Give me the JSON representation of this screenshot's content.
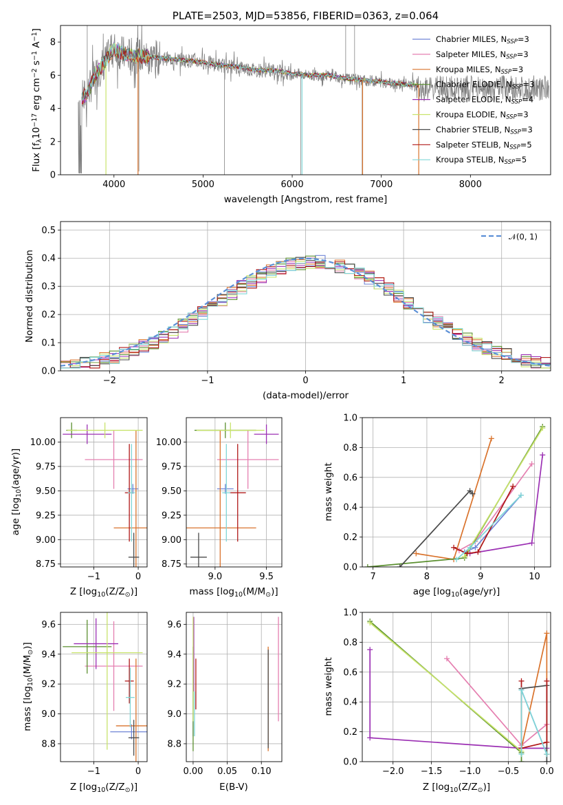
{
  "colors": {
    "Chabrier MILES": "#6f84d6",
    "Salpeter MILES": "#e57fb0",
    "Kroupa MILES": "#d9722b",
    "Chabrier ELODIE": "#5a8f2e",
    "Salpeter ELODIE": "#9b2fb3",
    "Kroupa ELODIE": "#c8e36b",
    "Chabrier STELIB": "#4a4a4a",
    "Salpeter STELIB": "#b01818",
    "Kroupa STELIB": "#7fd6d6"
  },
  "chart_data": [
    {
      "type": "line",
      "title": "PLATE=2503, MJD=53856, FIBERID=0363, z=0.064",
      "xlabel": "wavelength [Angstrom, rest frame]",
      "ylabel_parts": [
        "Flux [",
        "f",
        "λ",
        "10",
        "−17",
        " erg cm",
        "−2",
        " s",
        "−1",
        " A",
        "−1",
        "]"
      ],
      "xlim": [
        3400,
        8900
      ],
      "ylim": [
        0,
        9
      ],
      "xticks": [
        4000,
        5000,
        6000,
        7000,
        8000
      ],
      "yticks": [
        0,
        2,
        4,
        6,
        8
      ],
      "legend_position": "right",
      "legend": [
        {
          "name": "Chabrier MILES",
          "n": "3"
        },
        {
          "name": "Salpeter MILES",
          "n": "3"
        },
        {
          "name": "Kroupa MILES",
          "n": "3"
        },
        {
          "name": "Chabrier ELODIE",
          "n": "3"
        },
        {
          "name": "Salpeter ELODIE",
          "n": "4"
        },
        {
          "name": "Kroupa ELODIE",
          "n": "3"
        },
        {
          "name": "Chabrier STELIB",
          "n": "3"
        },
        {
          "name": "Salpeter STELIB",
          "n": "5"
        },
        {
          "name": "Kroupa STELIB",
          "n": "5"
        }
      ],
      "legend_suffix": ", N",
      "legend_sub": "SSP",
      "continuum": {
        "wavelength": [
          3600,
          3700,
          3800,
          3900,
          4000,
          4100,
          4200,
          4400,
          4600,
          4800,
          5000,
          5200,
          5400,
          5600,
          5800,
          6000,
          6200,
          6400,
          6600,
          6800,
          7000,
          7200,
          7400
        ],
        "flux": [
          4.4,
          4.9,
          6.1,
          6.8,
          7.6,
          7.3,
          7.2,
          7.1,
          7.0,
          6.9,
          6.8,
          6.6,
          6.5,
          6.3,
          6.3,
          6.1,
          6.0,
          6.0,
          5.8,
          5.7,
          5.6,
          5.5,
          5.4
        ]
      }
    },
    {
      "type": "histogram",
      "xlabel": "(data-model)/error",
      "ylabel": "Normed distribution",
      "xlim": [
        -2.5,
        2.5
      ],
      "ylim": [
        0,
        0.53
      ],
      "xticks": [
        -2,
        -1,
        0,
        1,
        2
      ],
      "yticks": [
        0.0,
        0.1,
        0.2,
        0.3,
        0.4,
        0.5
      ],
      "grid": true,
      "legend_position": "top-right",
      "reference_curve": {
        "name": "𝒩(0, 1)",
        "style": "dashed",
        "color": "#5b8fd6"
      },
      "bin_edges_start": -2.5,
      "bin_width": 0.1
    },
    {
      "type": "errorbar",
      "xlabel_parts": [
        "Z [log",
        "10",
        "(Z/Z",
        "⊙",
        ")]"
      ],
      "ylabel_parts": [
        "age  [log",
        "10",
        "(age/yr)]"
      ],
      "xlim": [
        -1.75,
        0.2
      ],
      "ylim": [
        8.72,
        10.25
      ],
      "xticks": [
        -1,
        0
      ],
      "yticks": [
        8.75,
        9.0,
        9.25,
        9.5,
        9.75,
        10.0
      ],
      "grid": true,
      "points": [
        {
          "model": "Chabrier MILES",
          "x": -0.12,
          "y": 9.52,
          "xerr": 0.12,
          "yerr": 0.05
        },
        {
          "model": "Salpeter MILES",
          "x": -0.55,
          "y": 9.82,
          "xerr": 0.65,
          "yerr": 0.3
        },
        {
          "model": "Kroupa MILES",
          "x": -0.05,
          "y": 9.12,
          "xerr": 0.5,
          "yerr": 1.0
        },
        {
          "model": "Chabrier ELODIE",
          "x": -1.5,
          "y": 10.12,
          "xerr": 0.12,
          "yerr": 0.08
        },
        {
          "model": "Salpeter ELODIE",
          "x": -1.15,
          "y": 10.08,
          "xerr": 0.55,
          "yerr": 0.1
        },
        {
          "model": "Kroupa ELODIE",
          "x": -0.75,
          "y": 10.12,
          "xerr": 0.85,
          "yerr": 0.08
        },
        {
          "model": "Chabrier STELIB",
          "x": -0.1,
          "y": 8.82,
          "xerr": 0.12,
          "yerr": 0.25
        },
        {
          "model": "Salpeter STELIB",
          "x": -0.2,
          "y": 9.48,
          "xerr": 0.1,
          "yerr": 0.5
        },
        {
          "model": "Kroupa STELIB",
          "x": -0.15,
          "y": 9.48,
          "xerr": 0.08,
          "yerr": 0.5
        }
      ]
    },
    {
      "type": "errorbar",
      "xlabel_parts": [
        "mass [log",
        "10",
        "(M/M",
        "⊙",
        ")]"
      ],
      "ylabel_parts": [
        "age  [log",
        "10",
        "(age/yr)]"
      ],
      "xlim": [
        8.72,
        9.65
      ],
      "ylim": [
        8.72,
        10.25
      ],
      "xticks": [
        9.0,
        9.5
      ],
      "yticks": [
        8.75,
        9.0,
        9.25,
        9.5,
        9.75,
        10.0
      ],
      "grid": true,
      "points": [
        {
          "model": "Chabrier MILES",
          "x": 9.1,
          "y": 9.52,
          "xerr": 0.08,
          "yerr": 0.05
        },
        {
          "model": "Salpeter MILES",
          "x": 9.32,
          "y": 9.82,
          "xerr": 0.3,
          "yerr": 0.3
        },
        {
          "model": "Kroupa MILES",
          "x": 9.05,
          "y": 9.12,
          "xerr": 0.35,
          "yerr": 1.0
        },
        {
          "model": "Chabrier ELODIE",
          "x": 9.1,
          "y": 10.12,
          "xerr": 0.3,
          "yerr": 0.08
        },
        {
          "model": "Salpeter ELODIE",
          "x": 9.5,
          "y": 10.08,
          "xerr": 0.12,
          "yerr": 0.1
        },
        {
          "model": "Kroupa ELODIE",
          "x": 9.15,
          "y": 10.12,
          "xerr": 0.33,
          "yerr": 0.08
        },
        {
          "model": "Chabrier STELIB",
          "x": 8.84,
          "y": 8.82,
          "xerr": 0.08,
          "yerr": 0.25
        },
        {
          "model": "Salpeter STELIB",
          "x": 9.22,
          "y": 9.48,
          "xerr": 0.08,
          "yerr": 0.5
        },
        {
          "model": "Kroupa STELIB",
          "x": 9.11,
          "y": 9.48,
          "xerr": 0.04,
          "yerr": 0.5
        }
      ]
    },
    {
      "type": "line",
      "xlabel_parts": [
        "age  [log",
        "10",
        "(age/yr)]"
      ],
      "ylabel": "mass weight",
      "xlim": [
        6.8,
        10.3
      ],
      "ylim": [
        0,
        1
      ],
      "xticks": [
        7,
        8,
        9,
        10
      ],
      "yticks": [
        0.0,
        0.2,
        0.4,
        0.6,
        0.8,
        1.0
      ],
      "grid": true,
      "series": [
        {
          "model": "Chabrier MILES",
          "x": [
            8.7,
            8.9,
            9.75
          ],
          "y": [
            0.1,
            0.13,
            0.48
          ]
        },
        {
          "model": "Salpeter MILES",
          "x": [
            8.6,
            8.9,
            9.95
          ],
          "y": [
            0.11,
            0.17,
            0.69
          ]
        },
        {
          "model": "Kroupa MILES",
          "x": [
            7.8,
            8.5,
            9.2
          ],
          "y": [
            0.09,
            0.05,
            0.86
          ]
        },
        {
          "model": "Chabrier ELODIE",
          "x": [
            6.9,
            8.7,
            10.15
          ],
          "y": [
            0.0,
            0.06,
            0.94
          ]
        },
        {
          "model": "Salpeter ELODIE",
          "x": [
            8.8,
            9.95,
            10.15
          ],
          "y": [
            0.09,
            0.16,
            0.75
          ]
        },
        {
          "model": "Kroupa ELODIE",
          "x": [
            8.7,
            10.15
          ],
          "y": [
            0.07,
            0.93
          ]
        },
        {
          "model": "Chabrier STELIB",
          "x": [
            7.5,
            8.8,
            8.85
          ],
          "y": [
            0.0,
            0.51,
            0.49
          ]
        },
        {
          "model": "Salpeter STELIB",
          "x": [
            8.5,
            8.75,
            8.95,
            9.6
          ],
          "y": [
            0.13,
            0.09,
            0.1,
            0.54
          ]
        },
        {
          "model": "Kroupa STELIB",
          "x": [
            8.55,
            8.8,
            9.75
          ],
          "y": [
            0.05,
            0.13,
            0.48
          ]
        }
      ]
    },
    {
      "type": "errorbar",
      "xlabel_parts": [
        "Z [log",
        "10",
        "(Z/Z",
        "⊙",
        ")]"
      ],
      "ylabel_parts": [
        "mass [log",
        "10",
        "(M/M",
        "⊙",
        ")]"
      ],
      "xlim": [
        -1.75,
        0.2
      ],
      "ylim": [
        8.68,
        9.68
      ],
      "xticks": [
        -1,
        0
      ],
      "yticks": [
        8.8,
        9.0,
        9.2,
        9.4,
        9.6
      ],
      "grid": true,
      "points": [
        {
          "model": "Chabrier MILES",
          "x": -0.15,
          "y": 8.88,
          "xerr": 0.48,
          "yerr": 0.05
        },
        {
          "model": "Salpeter MILES",
          "x": -0.55,
          "y": 9.32,
          "xerr": 0.65,
          "yerr": 0.3
        },
        {
          "model": "Kroupa MILES",
          "x": -0.05,
          "y": 8.92,
          "xerr": 0.45,
          "yerr": 0.45
        },
        {
          "model": "Chabrier ELODIE",
          "x": -1.15,
          "y": 9.45,
          "xerr": 0.55,
          "yerr": 0.18
        },
        {
          "model": "Salpeter ELODIE",
          "x": -0.95,
          "y": 9.47,
          "xerr": 0.5,
          "yerr": 0.17
        },
        {
          "model": "Kroupa ELODIE",
          "x": -0.7,
          "y": 9.41,
          "xerr": 0.8,
          "yerr": 0.65
        },
        {
          "model": "Chabrier STELIB",
          "x": -0.1,
          "y": 8.84,
          "xerr": 0.12,
          "yerr": 0.12
        },
        {
          "model": "Salpeter STELIB",
          "x": -0.2,
          "y": 9.22,
          "xerr": 0.1,
          "yerr": 0.15
        },
        {
          "model": "Kroupa STELIB",
          "x": -0.18,
          "y": 9.11,
          "xerr": 0.1,
          "yerr": 0.2
        }
      ]
    },
    {
      "type": "errorbar",
      "xlabel": "E(B-V)",
      "ylabel": "",
      "xlim": [
        -0.01,
        0.13
      ],
      "ylim": [
        8.68,
        9.68
      ],
      "xticks": [
        0.0,
        0.05,
        0.1
      ],
      "yticks": [
        8.8,
        9.0,
        9.2,
        9.4,
        9.6
      ],
      "grid": true,
      "points": [
        {
          "model": "Chabrier MILES",
          "x": 0.0,
          "y": 9.0,
          "xerr": 0.0,
          "yerr": 0.15
        },
        {
          "model": "Salpeter MILES",
          "x": 0.125,
          "y": 9.3,
          "xerr": 0.0,
          "yerr": 0.35
        },
        {
          "model": "Kroupa MILES",
          "x": 0.11,
          "y": 9.1,
          "xerr": 0.0,
          "yerr": 0.35
        },
        {
          "model": "Chabrier ELODIE",
          "x": 0.0,
          "y": 9.1,
          "xerr": 0.0,
          "yerr": 0.35
        },
        {
          "model": "Salpeter ELODIE",
          "x": 0.001,
          "y": 9.4,
          "xerr": 0.0,
          "yerr": 0.25
        },
        {
          "model": "Kroupa ELODIE",
          "x": 0.0,
          "y": 9.3,
          "xerr": 0.0,
          "yerr": 0.35
        },
        {
          "model": "Chabrier STELIB",
          "x": 0.11,
          "y": 9.1,
          "xerr": 0.0,
          "yerr": 0.33
        },
        {
          "model": "Salpeter STELIB",
          "x": 0.004,
          "y": 9.2,
          "xerr": 0.0,
          "yerr": 0.17
        },
        {
          "model": "Kroupa STELIB",
          "x": 0.002,
          "y": 9.0,
          "xerr": 0.0,
          "yerr": 0.15
        }
      ]
    },
    {
      "type": "line",
      "xlabel_parts": [
        "Z [log",
        "10",
        "(Z/Z",
        "⊙",
        ")]"
      ],
      "ylabel": "mass weight",
      "xlim": [
        -2.4,
        0.05
      ],
      "ylim": [
        0,
        1
      ],
      "xticks": [
        -2.0,
        -1.5,
        -1.0,
        -0.5,
        0.0
      ],
      "yticks": [
        0.0,
        0.2,
        0.4,
        0.6,
        0.8,
        1.0
      ],
      "grid": true,
      "series": [
        {
          "model": "Chabrier MILES",
          "x": [
            -0.33,
            0.0
          ],
          "y": [
            0.48,
            0.05
          ]
        },
        {
          "model": "Salpeter MILES",
          "x": [
            -1.3,
            -0.33,
            0.0
          ],
          "y": [
            0.69,
            0.11,
            0.25
          ]
        },
        {
          "model": "Kroupa MILES",
          "x": [
            -0.33,
            0.0,
            0.0
          ],
          "y": [
            0.09,
            0.86,
            0.05
          ]
        },
        {
          "model": "Chabrier ELODIE",
          "x": [
            -2.3,
            -0.33,
            -0.33
          ],
          "y": [
            0.94,
            0.06,
            0.0
          ]
        },
        {
          "model": "Salpeter ELODIE",
          "x": [
            -2.3,
            -2.3,
            -0.33,
            0.0
          ],
          "y": [
            0.75,
            0.16,
            0.09,
            0.09
          ]
        },
        {
          "model": "Kroupa ELODIE",
          "x": [
            -2.3,
            -0.33
          ],
          "y": [
            0.93,
            0.07
          ]
        },
        {
          "model": "Chabrier STELIB",
          "x": [
            -0.33,
            0.0,
            0.0
          ],
          "y": [
            0.49,
            0.51,
            0.0
          ]
        },
        {
          "model": "Salpeter STELIB",
          "x": [
            -0.33,
            -0.33,
            0.0,
            0.0
          ],
          "y": [
            0.54,
            0.09,
            0.13,
            0.54
          ]
        },
        {
          "model": "Kroupa STELIB",
          "x": [
            -0.33,
            -0.33,
            0.0
          ],
          "y": [
            0.05,
            0.48,
            0.05
          ]
        }
      ]
    }
  ]
}
